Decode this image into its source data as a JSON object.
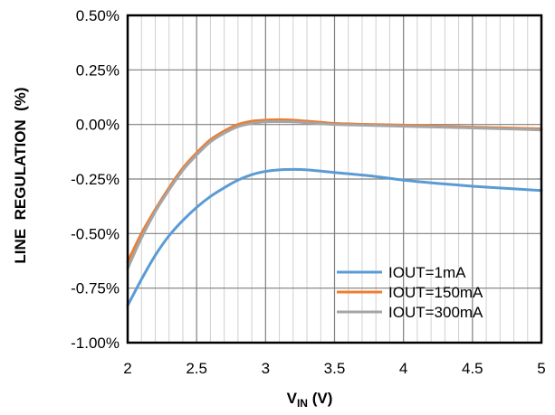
{
  "chart_data": {
    "type": "line",
    "title": "",
    "xlabel": {
      "main": "V",
      "sub": "IN",
      "unit": " (V)"
    },
    "ylabel": "LINE  REGULATION  (%)",
    "xlim": [
      2,
      5
    ],
    "ylim": [
      -1.0,
      0.5
    ],
    "x_ticks": [
      2,
      2.5,
      3,
      3.5,
      4,
      4.5,
      5
    ],
    "x_tick_labels": [
      "2",
      "2.5",
      "3",
      "3.5",
      "4",
      "4.5",
      "5"
    ],
    "y_ticks": [
      0.5,
      0.25,
      0.0,
      -0.25,
      -0.5,
      -0.75,
      -1.0
    ],
    "y_tick_labels": [
      "0.50%",
      "0.25%",
      "0.00%",
      "-0.25%",
      "-0.50%",
      "-0.75%",
      "-1.00%"
    ],
    "grid": {
      "major_x": true,
      "minor_x_step": 0.1,
      "major_y": true
    },
    "legend_position": "bottom-right",
    "series": [
      {
        "name": "IOUT=1mA",
        "color": "#5B9BD5",
        "x": [
          2.0,
          2.1,
          2.2,
          2.3,
          2.4,
          2.5,
          2.6,
          2.7,
          2.8,
          2.9,
          3.0,
          3.1,
          3.2,
          3.3,
          3.5,
          3.75,
          4.0,
          4.25,
          4.5,
          4.75,
          5.0
        ],
        "y": [
          -0.83,
          -0.71,
          -0.6,
          -0.51,
          -0.44,
          -0.38,
          -0.33,
          -0.29,
          -0.255,
          -0.23,
          -0.215,
          -0.208,
          -0.206,
          -0.208,
          -0.22,
          -0.235,
          -0.255,
          -0.27,
          -0.283,
          -0.293,
          -0.303
        ]
      },
      {
        "name": "IOUT=150mA",
        "color": "#ED7D31",
        "x": [
          2.0,
          2.1,
          2.2,
          2.3,
          2.4,
          2.5,
          2.6,
          2.7,
          2.8,
          2.9,
          3.0,
          3.1,
          3.2,
          3.3,
          3.4,
          3.5,
          3.75,
          4.0,
          4.25,
          4.5,
          4.75,
          5.0
        ],
        "y": [
          -0.63,
          -0.5,
          -0.39,
          -0.29,
          -0.2,
          -0.13,
          -0.07,
          -0.03,
          0.0,
          0.015,
          0.02,
          0.022,
          0.02,
          0.015,
          0.01,
          0.005,
          0.0,
          -0.003,
          -0.008,
          -0.012,
          -0.016,
          -0.02
        ]
      },
      {
        "name": "IOUT=300mA",
        "color": "#A5A5A5",
        "x": [
          2.0,
          2.1,
          2.2,
          2.3,
          2.4,
          2.5,
          2.6,
          2.7,
          2.8,
          2.9,
          3.0,
          3.1,
          3.2,
          3.3,
          3.4,
          3.5,
          3.75,
          4.0,
          4.25,
          4.5,
          4.75,
          5.0
        ],
        "y": [
          -0.66,
          -0.52,
          -0.4,
          -0.3,
          -0.21,
          -0.14,
          -0.08,
          -0.04,
          -0.01,
          0.005,
          0.012,
          0.013,
          0.012,
          0.008,
          0.004,
          0.0,
          -0.004,
          -0.008,
          -0.012,
          -0.016,
          -0.02,
          -0.025
        ]
      }
    ]
  }
}
